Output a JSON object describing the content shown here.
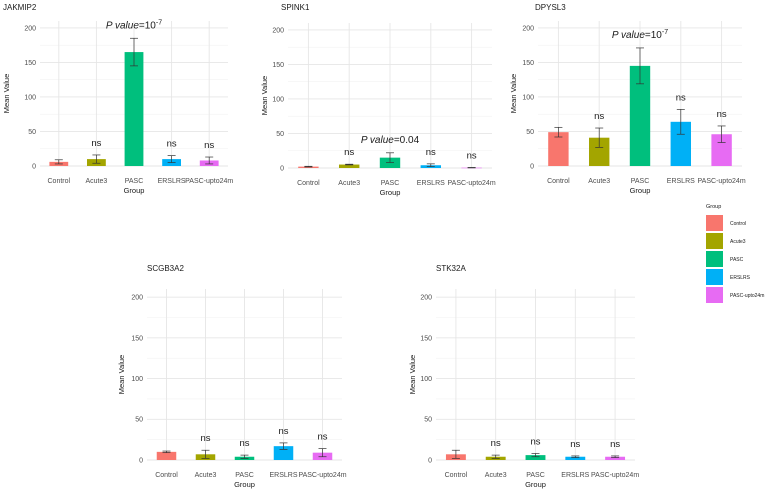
{
  "legend": {
    "title": "Group",
    "entries": [
      {
        "label": "Control",
        "color": "#F8766D"
      },
      {
        "label": "Acute3",
        "color": "#A3A500"
      },
      {
        "label": "PASC",
        "color": "#00BF7D"
      },
      {
        "label": "ERSLRS",
        "color": "#00B0F6"
      },
      {
        "label": "PASC-upto24m",
        "color": "#E76BF3"
      }
    ]
  },
  "chart_data": [
    {
      "type": "bar",
      "title": "JAKMIP2",
      "xlabel": "Group",
      "ylabel": "Mean Value",
      "ylim": [
        0,
        210
      ],
      "yticks": [
        0,
        50,
        100,
        150,
        200
      ],
      "categories": [
        "Control",
        "Acute3",
        "PASC",
        "ERSLRS",
        "PASC-upto24m"
      ],
      "values": [
        6,
        10,
        165,
        10,
        8
      ],
      "errors": [
        3,
        6,
        20,
        5,
        5
      ],
      "annotations": [
        "",
        "ns",
        "",
        "ns",
        "ns"
      ],
      "pvalue": {
        "category": "PASC",
        "prefix": "P value",
        "text": "=10",
        "exponent": "-7"
      }
    },
    {
      "type": "bar",
      "title": "SPINK1",
      "xlabel": "Group",
      "ylabel": "Mean Value",
      "ylim": [
        0,
        210
      ],
      "yticks": [
        0,
        50,
        100,
        150,
        200
      ],
      "categories": [
        "Control",
        "Acute3",
        "PASC",
        "ERSLRS",
        "PASC-upto24m"
      ],
      "values": [
        2,
        5,
        15,
        4,
        0.5
      ],
      "errors": [
        0.5,
        0.5,
        7,
        2,
        0.3
      ],
      "annotations": [
        "",
        "ns",
        "",
        "ns",
        "ns"
      ],
      "pvalue": {
        "category": "PASC",
        "prefix": "P value",
        "text": "=0.04",
        "exponent": ""
      }
    },
    {
      "type": "bar",
      "title": "DPYSL3",
      "xlabel": "Group",
      "ylabel": "Mean Value",
      "ylim": [
        0,
        210
      ],
      "yticks": [
        0,
        50,
        100,
        150,
        200
      ],
      "categories": [
        "Control",
        "Acute3",
        "PASC",
        "ERSLRS",
        "PASC-upto24m"
      ],
      "values": [
        49,
        41,
        145,
        64,
        46
      ],
      "errors": [
        7,
        14,
        26,
        18,
        12
      ],
      "annotations": [
        "",
        "ns",
        "",
        "ns",
        "ns"
      ],
      "pvalue": {
        "category": "PASC",
        "prefix": "P value",
        "text": "=10",
        "exponent": "-7"
      }
    },
    {
      "type": "bar",
      "title": "SCGB3A2",
      "xlabel": "Group",
      "ylabel": "Mean Value",
      "ylim": [
        0,
        210
      ],
      "yticks": [
        0,
        50,
        100,
        150,
        200
      ],
      "categories": [
        "Control",
        "Acute3",
        "PASC",
        "ERSLRS",
        "PASC-upto24m"
      ],
      "values": [
        10,
        7,
        4,
        17,
        9
      ],
      "errors": [
        1,
        5,
        2,
        4,
        5
      ],
      "annotations": [
        "",
        "ns",
        "ns",
        "ns",
        "ns"
      ],
      "pvalue": null
    },
    {
      "type": "bar",
      "title": "STK32A",
      "xlabel": "Group",
      "ylabel": "Mean Value",
      "ylim": [
        0,
        210
      ],
      "yticks": [
        0,
        50,
        100,
        150,
        200
      ],
      "categories": [
        "Control",
        "Acute3",
        "PASC",
        "ERSLRS",
        "PASC-upto24m"
      ],
      "values": [
        7,
        4,
        6,
        4,
        4
      ],
      "errors": [
        5,
        2,
        2,
        1,
        1
      ],
      "annotations": [
        "",
        "ns",
        "ns",
        "ns",
        "ns"
      ],
      "pvalue": null
    }
  ]
}
